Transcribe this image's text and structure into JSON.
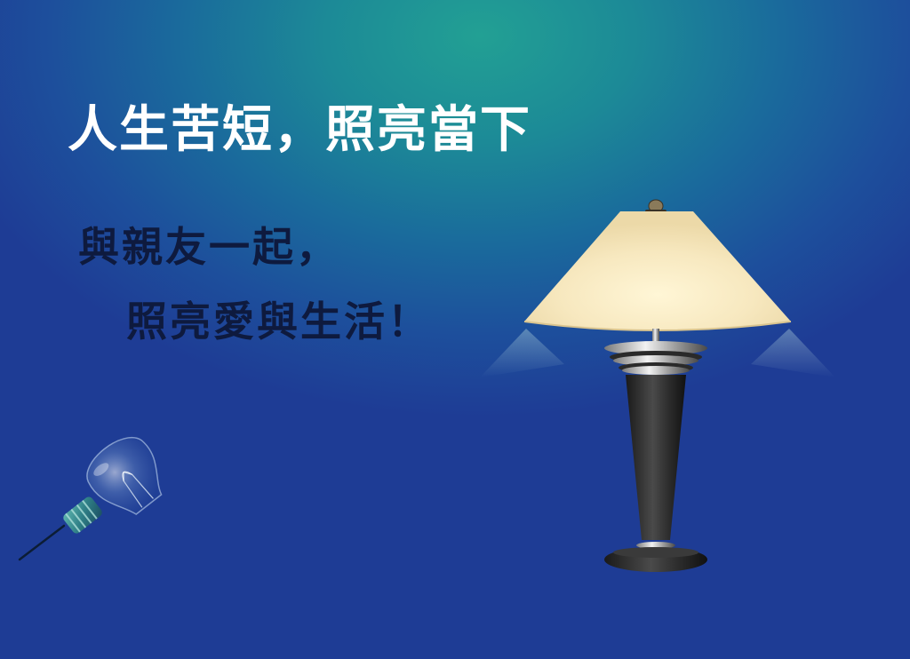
{
  "slide": {
    "headline": "人生苦短，照亮當下",
    "line_1": "與親友一起，",
    "line_2": "照亮愛與生活！"
  },
  "illustrations": {
    "bulb_icon": "light-bulb-icon",
    "lamp_icon": "table-lamp-icon"
  },
  "colors": {
    "background_glow": "#22a094",
    "background_edge": "#1e3c95",
    "headline_text": "#ffffff",
    "body_text": "#0e1a3e",
    "lamp_shade": "#f6e7bd",
    "lamp_body": "#2b2b2b"
  }
}
